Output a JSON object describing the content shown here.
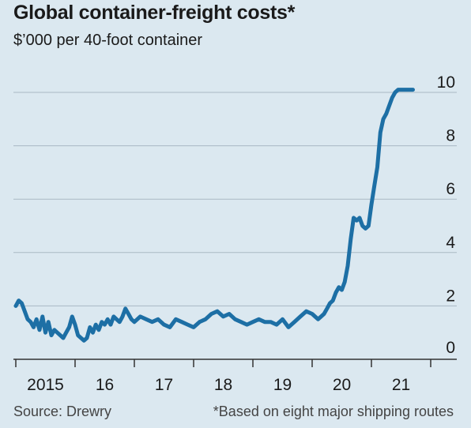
{
  "title": "Global container-freight costs*",
  "subtitle": "$’000 per 40-foot container",
  "source": "Source: Drewry",
  "note": "*Based on eight major shipping routes",
  "colors": {
    "line": "#1d6fa5",
    "grid": "#a9b9c4",
    "background": "#dbe8f0",
    "axis": "#333333"
  },
  "chart_data": {
    "type": "line",
    "x_tick_labels": [
      "2015",
      "16",
      "17",
      "18",
      "19",
      "20",
      "21"
    ],
    "y_ticks": [
      0,
      2,
      4,
      6,
      8,
      10
    ],
    "ylim": [
      0,
      10
    ],
    "xlim": [
      2015.0,
      2022.0
    ],
    "grid": true,
    "y_axis_position": "right",
    "series": [
      {
        "x": [
          2015.0,
          2015.05,
          2015.1,
          2015.15,
          2015.2,
          2015.25,
          2015.3,
          2015.35,
          2015.4,
          2015.45,
          2015.5,
          2015.55,
          2015.6,
          2015.65,
          2015.7,
          2015.75,
          2015.8,
          2015.85,
          2015.9,
          2015.95,
          2016.0,
          2016.05,
          2016.1,
          2016.15,
          2016.2,
          2016.25,
          2016.3,
          2016.35,
          2016.4,
          2016.45,
          2016.5,
          2016.55,
          2016.6,
          2016.65,
          2016.7,
          2016.75,
          2016.8,
          2016.85,
          2016.9,
          2016.95,
          2017.0,
          2017.1,
          2017.2,
          2017.3,
          2017.4,
          2017.5,
          2017.6,
          2017.7,
          2017.8,
          2017.9,
          2018.0,
          2018.1,
          2018.2,
          2018.3,
          2018.4,
          2018.5,
          2018.6,
          2018.7,
          2018.8,
          2018.9,
          2019.0,
          2019.1,
          2019.2,
          2019.3,
          2019.4,
          2019.5,
          2019.6,
          2019.7,
          2019.8,
          2019.9,
          2020.0,
          2020.05,
          2020.1,
          2020.15,
          2020.2,
          2020.25,
          2020.3,
          2020.35,
          2020.4,
          2020.45,
          2020.5,
          2020.55,
          2020.6,
          2020.65,
          2020.7,
          2020.75,
          2020.8,
          2020.85,
          2020.9,
          2020.95,
          2021.0,
          2021.05,
          2021.1,
          2021.15,
          2021.2,
          2021.25,
          2021.3,
          2021.35,
          2021.4,
          2021.45,
          2021.5,
          2021.55,
          2021.6,
          2021.65,
          2021.7
        ],
        "y": [
          2.0,
          2.2,
          2.1,
          1.8,
          1.5,
          1.4,
          1.2,
          1.5,
          1.1,
          1.6,
          1.0,
          1.4,
          0.9,
          1.1,
          1.0,
          0.9,
          0.8,
          1.0,
          1.2,
          1.6,
          1.3,
          0.9,
          0.8,
          0.7,
          0.8,
          1.2,
          1.0,
          1.3,
          1.1,
          1.4,
          1.3,
          1.5,
          1.3,
          1.6,
          1.5,
          1.4,
          1.6,
          1.9,
          1.7,
          1.5,
          1.4,
          1.6,
          1.5,
          1.4,
          1.5,
          1.3,
          1.2,
          1.5,
          1.4,
          1.3,
          1.2,
          1.4,
          1.5,
          1.7,
          1.8,
          1.6,
          1.7,
          1.5,
          1.4,
          1.3,
          1.4,
          1.5,
          1.4,
          1.4,
          1.3,
          1.5,
          1.2,
          1.4,
          1.6,
          1.8,
          1.7,
          1.6,
          1.5,
          1.6,
          1.7,
          1.9,
          2.1,
          2.2,
          2.5,
          2.7,
          2.6,
          2.9,
          3.5,
          4.5,
          5.3,
          5.2,
          5.3,
          5.0,
          4.9,
          5.0,
          5.8,
          6.5,
          7.2,
          8.5,
          9.0,
          9.2,
          9.5,
          9.8,
          10.0,
          10.1,
          10.1,
          10.1,
          10.1,
          10.1,
          10.1
        ]
      }
    ]
  }
}
